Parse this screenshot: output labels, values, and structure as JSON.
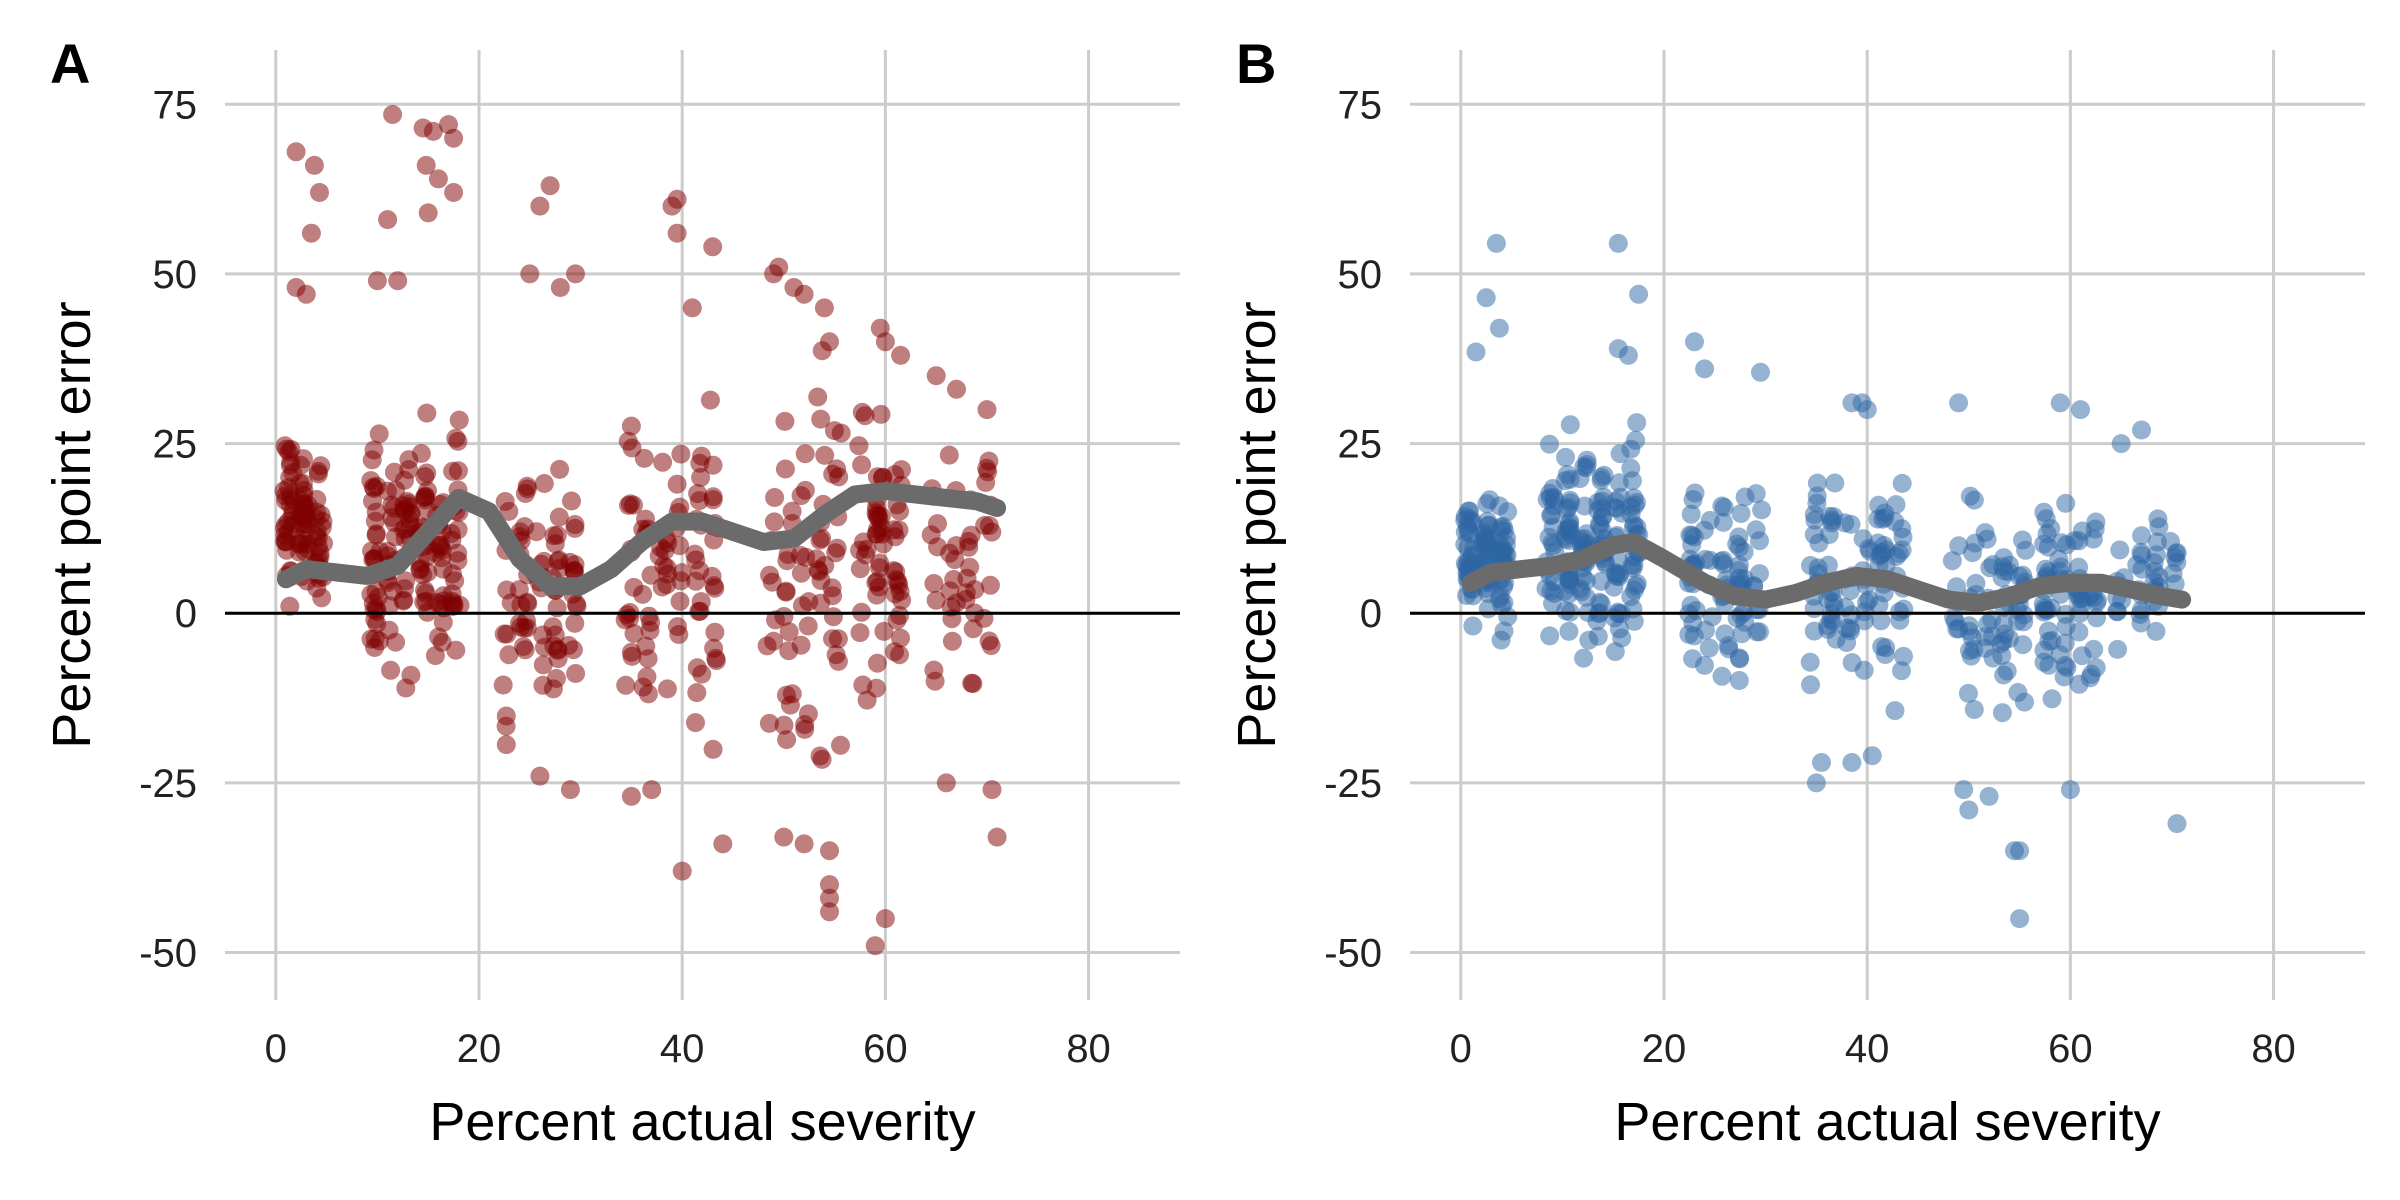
{
  "chart_data": [
    {
      "type": "scatter",
      "panel_label": "A",
      "xlabel": "Percent actual severity",
      "ylabel": "Percent point error",
      "xlim": [
        -5,
        89
      ],
      "ylim": [
        -57,
        83
      ],
      "xticks": [
        0,
        20,
        40,
        60,
        80
      ],
      "yticks": [
        -50,
        -25,
        0,
        25,
        50,
        75
      ],
      "ytick_labels": [
        "-50",
        "-25",
        "0",
        "25",
        "50",
        "75"
      ],
      "grid": true,
      "reference_line_y": 0,
      "point_color": "#7f0000",
      "point_opacity": 0.5,
      "smooth_color": "#6b6b6b",
      "clusters": [
        {
          "x": [
            0.5,
            5
          ],
          "y": [
            -5,
            30
          ],
          "n": 90
        },
        {
          "x": [
            9,
            18.5
          ],
          "y": [
            -14,
            35
          ],
          "n": 150
        },
        {
          "x": [
            22,
            30
          ],
          "y": [
            -25,
            30
          ],
          "n": 80
        },
        {
          "x": [
            34,
            44
          ],
          "y": [
            -28,
            38
          ],
          "n": 90
        },
        {
          "x": [
            48,
            56
          ],
          "y": [
            -32,
            45
          ],
          "n": 70
        },
        {
          "x": [
            57,
            62
          ],
          "y": [
            -22,
            40
          ],
          "n": 60
        },
        {
          "x": [
            64,
            71
          ],
          "y": [
            -20,
            33
          ],
          "n": 45
        }
      ],
      "outliers": [
        [
          2,
          68
        ],
        [
          3.8,
          66
        ],
        [
          4.3,
          62
        ],
        [
          3.5,
          56
        ],
        [
          2,
          48
        ],
        [
          3,
          47
        ],
        [
          11.5,
          73.5
        ],
        [
          14.5,
          71.5
        ],
        [
          15.5,
          71
        ],
        [
          17,
          72
        ],
        [
          17.5,
          70
        ],
        [
          14.8,
          66
        ],
        [
          16,
          64
        ],
        [
          17.5,
          62
        ],
        [
          11,
          58
        ],
        [
          15,
          59
        ],
        [
          12,
          49
        ],
        [
          10,
          49
        ],
        [
          27,
          63
        ],
        [
          26,
          60
        ],
        [
          25,
          50
        ],
        [
          28,
          48
        ],
        [
          29.5,
          50
        ],
        [
          39.5,
          61
        ],
        [
          39,
          60
        ],
        [
          39.5,
          56
        ],
        [
          43,
          54
        ],
        [
          41,
          45
        ],
        [
          49.5,
          51
        ],
        [
          49,
          50
        ],
        [
          51,
          48
        ],
        [
          52,
          47
        ],
        [
          54,
          45
        ],
        [
          54.5,
          40
        ],
        [
          59.5,
          42
        ],
        [
          60,
          40
        ],
        [
          61.5,
          38
        ],
        [
          65,
          35
        ],
        [
          67,
          33
        ],
        [
          70,
          30
        ],
        [
          40,
          -38
        ],
        [
          44,
          -34
        ],
        [
          50,
          -33
        ],
        [
          52,
          -34
        ],
        [
          54.5,
          -35
        ],
        [
          54.5,
          -40
        ],
        [
          54.5,
          -42
        ],
        [
          54.5,
          -44
        ],
        [
          59,
          -49
        ],
        [
          60,
          -45
        ],
        [
          66,
          -25
        ],
        [
          70.5,
          -26
        ],
        [
          71,
          -33
        ],
        [
          35,
          -27
        ],
        [
          37,
          -26
        ],
        [
          29,
          -26
        ],
        [
          26,
          -24
        ]
      ],
      "smooth": {
        "x": [
          1,
          3,
          6,
          9,
          12,
          15,
          18,
          21,
          24,
          27,
          30,
          33,
          36,
          39,
          42,
          45,
          48,
          51,
          54,
          57,
          60,
          63,
          66,
          69,
          71
        ],
        "y": [
          5,
          6.5,
          6,
          5.5,
          7,
          12,
          17,
          15,
          8,
          4,
          4,
          6.5,
          10.5,
          13.5,
          13.5,
          12,
          10.5,
          11,
          14.5,
          17.5,
          18,
          17.5,
          17,
          16.5,
          15.5
        ]
      }
    },
    {
      "type": "scatter",
      "panel_label": "B",
      "xlabel": "Percent actual severity",
      "ylabel": "Percent point error",
      "xlim": [
        -5,
        89
      ],
      "ylim": [
        -57,
        83
      ],
      "xticks": [
        0,
        20,
        40,
        60,
        80
      ],
      "yticks": [
        -50,
        -25,
        0,
        25,
        50,
        75
      ],
      "ytick_labels": [
        "-50",
        "-25",
        "0",
        "25",
        "50",
        "75"
      ],
      "grid": true,
      "reference_line_y": 0,
      "point_color": "#2e66a3",
      "point_opacity": 0.5,
      "smooth_color": "#6b6b6b",
      "clusters": [
        {
          "x": [
            0,
            5
          ],
          "y": [
            -5,
            20
          ],
          "n": 110
        },
        {
          "x": [
            8,
            18
          ],
          "y": [
            -10,
            30
          ],
          "n": 170
        },
        {
          "x": [
            22,
            30
          ],
          "y": [
            -17,
            25
          ],
          "n": 80
        },
        {
          "x": [
            34,
            44
          ],
          "y": [
            -20,
            28
          ],
          "n": 95
        },
        {
          "x": [
            48,
            56
          ],
          "y": [
            -22,
            20
          ],
          "n": 70
        },
        {
          "x": [
            57,
            63
          ],
          "y": [
            -18,
            25
          ],
          "n": 70
        },
        {
          "x": [
            64,
            71
          ],
          "y": [
            -10,
            22
          ],
          "n": 40
        }
      ],
      "outliers": [
        [
          3.5,
          54.5
        ],
        [
          15.5,
          54.5
        ],
        [
          2.5,
          46.5
        ],
        [
          17.5,
          47
        ],
        [
          3.8,
          42
        ],
        [
          1.5,
          38.5
        ],
        [
          15.5,
          39
        ],
        [
          23,
          40
        ],
        [
          24,
          36
        ],
        [
          29.5,
          35.5
        ],
        [
          16.5,
          38
        ],
        [
          38.5,
          31
        ],
        [
          39.5,
          31
        ],
        [
          40,
          30
        ],
        [
          49,
          31
        ],
        [
          59,
          31
        ],
        [
          61,
          30
        ],
        [
          65,
          25
        ],
        [
          67,
          27
        ],
        [
          70.5,
          -31
        ],
        [
          55,
          -35
        ],
        [
          54.5,
          -35
        ],
        [
          55,
          -45
        ],
        [
          50,
          -29
        ],
        [
          49.5,
          -26
        ],
        [
          52,
          -27
        ],
        [
          60,
          -26
        ],
        [
          35,
          -25
        ],
        [
          35.5,
          -22
        ],
        [
          38.5,
          -22
        ],
        [
          40.5,
          -21
        ]
      ],
      "smooth": {
        "x": [
          1,
          3,
          6,
          9,
          12,
          15,
          17,
          20,
          24,
          27,
          30,
          33,
          36,
          39,
          42,
          45,
          48,
          51,
          54,
          57,
          60,
          63,
          66,
          69,
          71
        ],
        "y": [
          4.5,
          6,
          6.5,
          7,
          8,
          10,
          10.5,
          8,
          4.5,
          2.5,
          2,
          3,
          4.5,
          5.5,
          5,
          3.5,
          2,
          1.5,
          2.5,
          4,
          4.5,
          4.5,
          3.5,
          2.5,
          2
        ]
      }
    }
  ]
}
